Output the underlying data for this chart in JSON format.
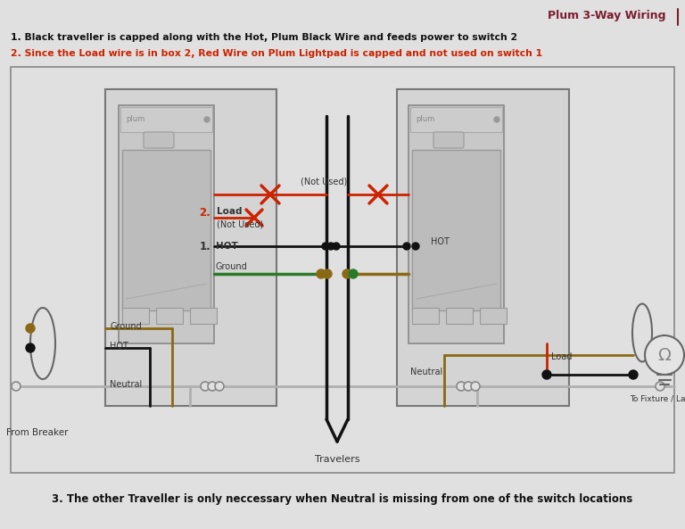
{
  "bg_color": "#e0e0e0",
  "title_text": "Plum 3-Way Wiring",
  "title_color": "#7b1c2e",
  "line1_text": "1. Black traveller is capped along with the Hot, Plum Black Wire and feeds power to switch 2",
  "line1_color": "#111111",
  "line2_text": "2. Since the Load wire is in box 2, Red Wire on Plum Lightpad is capped and not used on switch 1",
  "line2_color": "#cc2200",
  "line3_text": "3. The other Traveller is only neccessary when Neutral is missing from one of the switch locations",
  "line3_color": "#111111",
  "wire_black": "#111111",
  "wire_ground": "#8B6914",
  "wire_green": "#2a7a2a",
  "wire_red": "#cc2200",
  "travelers_label": "Travelers",
  "from_breaker_label": "From Breaker",
  "to_fixture_label": "To Fixture / Lamp"
}
